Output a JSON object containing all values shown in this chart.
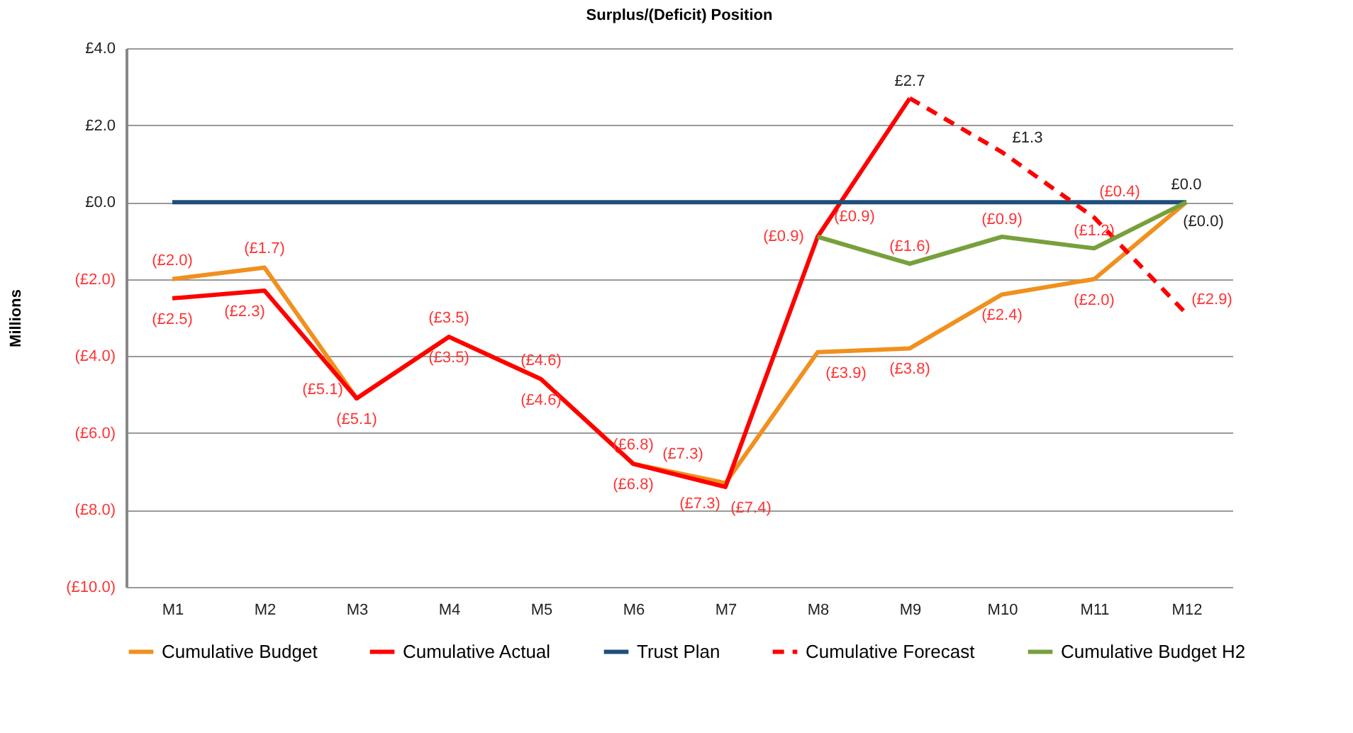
{
  "chart_data": {
    "type": "line",
    "title": "Surplus/(Deficit) Position",
    "ylabel": "Millions",
    "categories": [
      "M1",
      "M2",
      "M3",
      "M4",
      "M5",
      "M6",
      "M7",
      "M8",
      "M9",
      "M10",
      "M11",
      "M12"
    ],
    "series": [
      {
        "name": "Cumulative Budget",
        "color": "#f0901e",
        "values": [
          -2.0,
          -1.7,
          -5.1,
          -3.5,
          -4.6,
          -6.8,
          -7.3,
          -3.9,
          -3.8,
          -2.4,
          -2.0,
          0.0
        ],
        "value_labels": [
          "(£2.0)",
          "(£1.7)",
          "(£5.1)",
          "(£3.5)",
          "(£4.6)",
          "(£6.8)",
          "(£7.3)",
          "(£3.9)",
          "(£3.8)",
          "(£2.4)",
          "(£2.0)",
          null
        ]
      },
      {
        "name": "Cumulative Actual",
        "color": "#ff0000",
        "values": [
          -2.5,
          -2.3,
          -5.1,
          -3.5,
          -4.6,
          -6.8,
          -7.4,
          -0.9,
          2.7,
          null,
          null,
          null
        ],
        "value_labels": [
          "(£2.5)",
          "(£2.3)",
          "(£5.1)",
          "(£3.5)",
          "(£4.6)",
          "(£6.8)",
          "(£7.4)",
          "(£0.9)",
          "£2.7",
          null,
          null,
          null
        ]
      },
      {
        "name": "Trust Plan",
        "color": "#1f4e79",
        "values": [
          0.0,
          0.0,
          0.0,
          0.0,
          0.0,
          0.0,
          0.0,
          0.0,
          0.0,
          0.0,
          0.0,
          0.0
        ],
        "value_labels": [
          null,
          null,
          null,
          null,
          null,
          null,
          null,
          null,
          null,
          null,
          null,
          "£0.0"
        ]
      },
      {
        "name": "Cumulative Forecast",
        "color": "#ff0000",
        "line_style": "dashed",
        "values": [
          null,
          null,
          null,
          null,
          null,
          null,
          null,
          null,
          2.7,
          1.3,
          -0.4,
          -2.9
        ],
        "value_labels": [
          null,
          null,
          null,
          null,
          null,
          null,
          null,
          null,
          null,
          "£1.3",
          "(£0.4)",
          "(£2.9)"
        ]
      },
      {
        "name": "Cumulative Budget H2",
        "color": "#77a03c",
        "values": [
          null,
          null,
          null,
          null,
          null,
          null,
          null,
          -0.9,
          -1.6,
          -0.9,
          -1.2,
          0.0
        ],
        "value_labels": [
          null,
          null,
          null,
          null,
          null,
          null,
          null,
          "(£0.9)",
          "(£1.6)",
          "(£0.9)",
          "(£1.2)",
          "(£0.0)"
        ]
      }
    ],
    "annotations": [
      {
        "text": "(£7.3)",
        "x": "M7",
        "y": -7.3
      }
    ],
    "ylim": [
      -10,
      4
    ],
    "yticks": [
      {
        "value": -10,
        "label": "(£10.0)"
      },
      {
        "value": -8,
        "label": "(£8.0)"
      },
      {
        "value": -6,
        "label": "(£6.0)"
      },
      {
        "value": -4,
        "label": "(£4.0)"
      },
      {
        "value": -2,
        "label": "(£2.0)"
      },
      {
        "value": 0,
        "label": "£0.0"
      },
      {
        "value": 2,
        "label": "£2.0"
      },
      {
        "value": 4,
        "label": "£4.0"
      }
    ],
    "grid": "y",
    "legend": "bottom",
    "marker": "none"
  }
}
